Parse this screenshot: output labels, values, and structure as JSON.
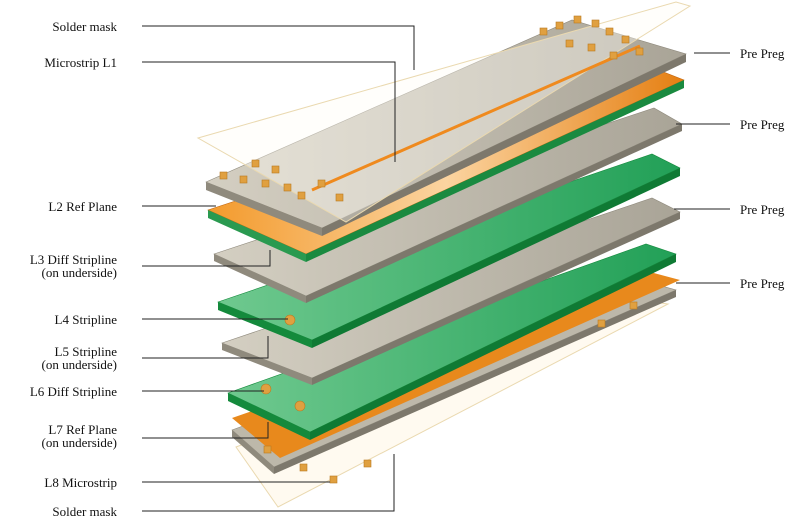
{
  "colors": {
    "gray_top": "#c7c2b4",
    "gray_side": "#8f8a7d",
    "orange_top": "#ef8a1e",
    "orange_side": "#c2650c",
    "green_top": "#3fb36f",
    "green_side": "#148a3c",
    "mask_line": "#e8d8b0",
    "pad": "#e0a040",
    "leader": "#222222"
  },
  "icons": [
    "via-pad-icon",
    "trace-icon"
  ],
  "labels_left": {
    "solder_mask_top": "Solder mask",
    "microstrip_l1": "Microstrip L1",
    "l2_ref_plane": "L2 Ref Plane",
    "l3_diff_stripline": "L3 Diff Stripline",
    "l3_note": "(on underside)",
    "l4_stripline": "L4 Stripline",
    "l5_stripline": "L5 Stripline",
    "l5_note": "(on underside)",
    "l6_diff_stripline": "L6 Diff Stripline",
    "l7_ref_plane": "L7 Ref Plane",
    "l7_note": "(on underside)",
    "l8_microstrip": "L8 Microstrip",
    "solder_mask_bottom": "Solder mask"
  },
  "labels_right": {
    "pre_preg_1": "Pre Preg",
    "pre_preg_2": "Pre Preg",
    "pre_preg_3": "Pre Preg",
    "pre_preg_4": "Pre Preg"
  }
}
